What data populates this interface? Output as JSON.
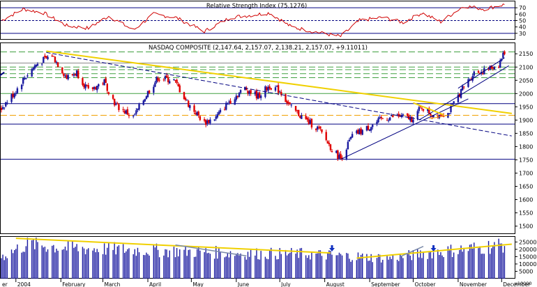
{
  "rsi_panel": {
    "title": "Relative Strength Index (75.1276)",
    "ylim": [
      20,
      80
    ],
    "tick_labels": [
      "70",
      "60",
      "50",
      "40",
      "30"
    ],
    "ticks": [
      70,
      60,
      50,
      40,
      30
    ],
    "reference_levels": [
      70,
      50,
      30
    ]
  },
  "price_panel": {
    "title": "NASDAQ COMPOSITE (2,147.64, 2,157.07, 2,138.21, 2,157.07, +9.11011)",
    "ylim": [
      1470,
      2190
    ],
    "tick_labels": [
      "2150",
      "2100",
      "2050",
      "2000",
      "1950",
      "1900",
      "1850",
      "1800",
      "1750",
      "1700",
      "1650",
      "1600",
      "1550",
      "1500"
    ],
    "ticks": [
      2150,
      2100,
      2050,
      2000,
      1950,
      1900,
      1850,
      1800,
      1750,
      1700,
      1650,
      1600,
      1550,
      1500
    ]
  },
  "volume_panel": {
    "ylim": [
      0,
      28500
    ],
    "tick_labels": [
      "25000",
      "20000",
      "15000",
      "10000",
      "5000"
    ],
    "ticks": [
      25000,
      20000,
      15000,
      10000,
      5000
    ],
    "corner_label": "x10000"
  },
  "x_axis": {
    "months": [
      "er",
      "2004",
      "February",
      "March",
      "April",
      "May",
      "June",
      "July",
      "August",
      "September",
      "October",
      "November",
      "December"
    ]
  },
  "colors": {
    "up": "#1a1aa0",
    "down": "#e00000",
    "rsi": "#d00000",
    "trend_yellow": "#f0d000",
    "orange_dash": "#f0a000",
    "green_dash": "#40a040",
    "navy": "#000080",
    "arrow": "#1030c0"
  },
  "chart_data": {
    "type": "candlestick",
    "title": "NASDAQ COMPOSITE (2,147.64, 2,157.07, 2,138.21, 2,157.07, +9.11011)",
    "period": "2004 (daily)",
    "price_anchors": [
      [
        "2003-12-22",
        1945
      ],
      [
        "2003-12-31",
        2003
      ],
      [
        "2004-01-07",
        2060
      ],
      [
        "2004-01-15",
        2110
      ],
      [
        "2004-01-26",
        2145
      ],
      [
        "2004-02-05",
        2060
      ],
      [
        "2004-02-12",
        2080
      ],
      [
        "2004-02-20",
        2010
      ],
      [
        "2004-03-02",
        2045
      ],
      [
        "2004-03-10",
        1955
      ],
      [
        "2004-03-22",
        1910
      ],
      [
        "2004-04-01",
        2005
      ],
      [
        "2004-04-08",
        2060
      ],
      [
        "2004-04-19",
        2050
      ],
      [
        "2004-04-29",
        1960
      ],
      [
        "2004-05-10",
        1890
      ],
      [
        "2004-05-18",
        1910
      ],
      [
        "2004-05-27",
        1970
      ],
      [
        "2004-06-07",
        2020
      ],
      [
        "2004-06-16",
        1990
      ],
      [
        "2004-06-24",
        2030
      ],
      [
        "2004-07-01",
        2010
      ],
      [
        "2004-07-09",
        1945
      ],
      [
        "2004-07-19",
        1900
      ],
      [
        "2004-07-28",
        1865
      ],
      [
        "2004-08-06",
        1790
      ],
      [
        "2004-08-12",
        1755
      ],
      [
        "2004-08-20",
        1840
      ],
      [
        "2004-09-01",
        1875
      ],
      [
        "2004-09-10",
        1905
      ],
      [
        "2004-09-20",
        1915
      ],
      [
        "2004-09-30",
        1905
      ],
      [
        "2004-10-07",
        1950
      ],
      [
        "2004-10-14",
        1920
      ],
      [
        "2004-10-25",
        1925
      ],
      [
        "2004-11-03",
        2010
      ],
      [
        "2004-11-12",
        2080
      ],
      [
        "2004-11-19",
        2085
      ],
      [
        "2004-11-29",
        2110
      ],
      [
        "2004-12-03",
        2157
      ]
    ],
    "rsi_anchors": [
      [
        "2003-12-22",
        50
      ],
      [
        "2004-01-06",
        68
      ],
      [
        "2004-01-20",
        62
      ],
      [
        "2004-02-05",
        42
      ],
      [
        "2004-02-20",
        38
      ],
      [
        "2004-03-05",
        57
      ],
      [
        "2004-03-22",
        35
      ],
      [
        "2004-04-05",
        60
      ],
      [
        "2004-04-20",
        55
      ],
      [
        "2004-05-10",
        33
      ],
      [
        "2004-05-28",
        55
      ],
      [
        "2004-06-10",
        58
      ],
      [
        "2004-06-24",
        62
      ],
      [
        "2004-07-09",
        40
      ],
      [
        "2004-07-26",
        32
      ],
      [
        "2004-08-12",
        25
      ],
      [
        "2004-08-25",
        50
      ],
      [
        "2004-09-10",
        55
      ],
      [
        "2004-09-24",
        47
      ],
      [
        "2004-10-07",
        62
      ],
      [
        "2004-10-20",
        48
      ],
      [
        "2004-11-05",
        73
      ],
      [
        "2004-11-19",
        68
      ],
      [
        "2004-12-03",
        75.13
      ]
    ],
    "volume_anchors": [
      [
        "2003-12-22",
        15000
      ],
      [
        "2004-01-10",
        24000
      ],
      [
        "2004-02-05",
        21000
      ],
      [
        "2004-03-10",
        20000
      ],
      [
        "2004-04-15",
        19000
      ],
      [
        "2004-05-15",
        18000
      ],
      [
        "2004-06-15",
        17000
      ],
      [
        "2004-07-15",
        17000
      ],
      [
        "2004-08-15",
        15500
      ],
      [
        "2004-09-15",
        14000
      ],
      [
        "2004-10-15",
        18000
      ],
      [
        "2004-11-15",
        21000
      ],
      [
        "2004-12-03",
        23500
      ]
    ],
    "horizontal_levels": [
      {
        "value": 2157,
        "style": "dashed",
        "color": "green"
      },
      {
        "value": 2115,
        "style": "solid",
        "color": "gray"
      },
      {
        "value": 2100,
        "style": "dashed",
        "color": "green"
      },
      {
        "value": 2090,
        "style": "dashed",
        "color": "green"
      },
      {
        "value": 2075,
        "style": "dashed",
        "color": "green"
      },
      {
        "value": 2060,
        "style": "dashed",
        "color": "green"
      },
      {
        "value": 2000,
        "style": "solid",
        "color": "green"
      },
      {
        "value": 1962,
        "style": "solid",
        "color": "navy"
      },
      {
        "value": 1918,
        "style": "dashed",
        "color": "orange"
      },
      {
        "value": 1885,
        "style": "solid",
        "color": "navy"
      },
      {
        "value": 1752,
        "style": "solid",
        "color": "navy"
      }
    ],
    "trend_lines": [
      {
        "color": "yellow",
        "from": [
          "2004-01-22",
          2160
        ],
        "to": [
          "2004-12-08",
          1925
        ]
      },
      {
        "color": "navy",
        "style": "dashed",
        "from": [
          "2004-01-22",
          2155
        ],
        "to": [
          "2004-12-08",
          1840
        ]
      },
      {
        "color": "navy",
        "from": [
          "2004-08-12",
          1752
        ],
        "to": [
          "2004-11-08",
          1980
        ]
      },
      {
        "color": "navy",
        "from": [
          "2004-10-05",
          1900
        ],
        "to": [
          "2004-12-06",
          2105
        ]
      },
      {
        "color": "navy",
        "from": [
          "2004-11-01",
          2020
        ],
        "to": [
          "2004-12-03",
          2135
        ]
      },
      {
        "color": "yellow",
        "from": [
          "2004-10-01",
          1965
        ],
        "to": [
          "2004-10-22",
          1920
        ]
      },
      {
        "color": "orange",
        "from": [
          "2004-10-12",
          1905
        ],
        "to": [
          "2004-10-25",
          1918
        ]
      }
    ],
    "volume_trend_lines": [
      {
        "color": "yellow",
        "from": [
          "2004-01-01",
          27500
        ],
        "to": [
          "2004-08-05",
          17500
        ]
      },
      {
        "color": "yellow",
        "from": [
          "2004-08-23",
          14000
        ],
        "to": [
          "2004-12-08",
          23500
        ]
      },
      {
        "color": "steelblue",
        "from": [
          "2004-04-20",
          23000
        ],
        "to": [
          "2004-06-08",
          15500
        ]
      },
      {
        "color": "steelblue",
        "from": [
          "2004-09-22",
          15000
        ],
        "to": [
          "2004-10-08",
          22000
        ]
      }
    ],
    "volume_arrow_dates": [
      "2004-08-06",
      "2004-10-15"
    ],
    "left_edge_arrow": {
      "from": [
        "2003-12-15",
        2045
      ],
      "to": [
        "2003-12-24",
        2080
      ]
    }
  }
}
